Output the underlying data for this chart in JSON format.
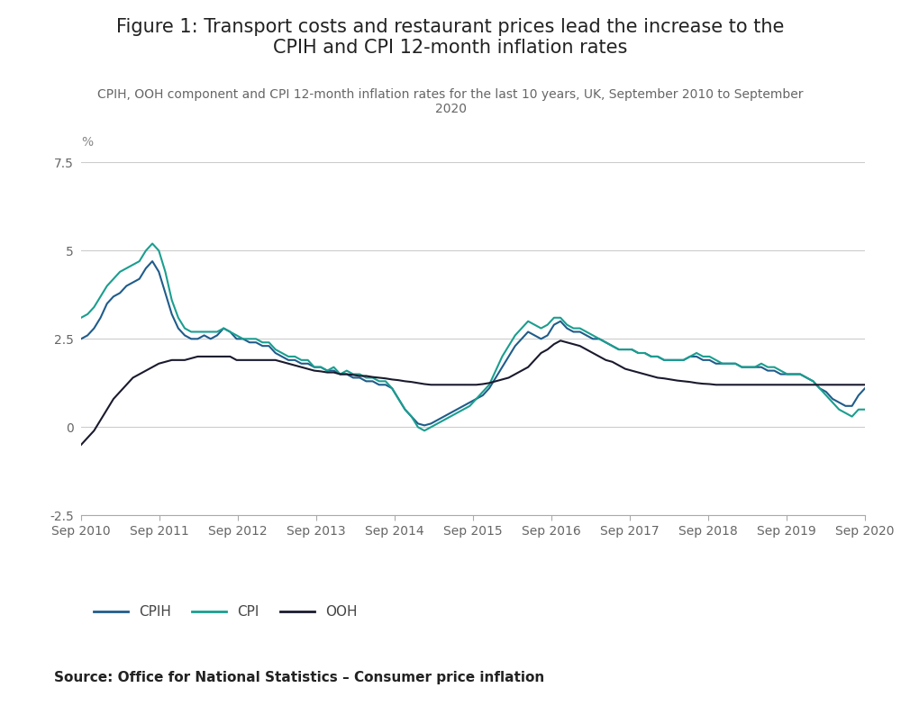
{
  "title": "Figure 1: Transport costs and restaurant prices lead the increase to the\nCPIH and CPI 12-month inflation rates",
  "subtitle": "CPIH, OOH component and CPI 12-month inflation rates for the last 10 years, UK, September 2010 to September\n2020",
  "source": "Source: Office for National Statistics – Consumer price inflation",
  "ylabel": "%",
  "ylim": [
    -2.5,
    7.5
  ],
  "yticks": [
    -2.5,
    0,
    2.5,
    5,
    7.5
  ],
  "xtick_labels": [
    "Sep 2010",
    "Sep 2011",
    "Sep 2012",
    "Sep 2013",
    "Sep 2014",
    "Sep 2015",
    "Sep 2016",
    "Sep 2017",
    "Sep 2018",
    "Sep 2019",
    "Sep 2020"
  ],
  "cpih_color": "#1f5c8b",
  "cpi_color": "#1a9e8f",
  "ooh_color": "#1a1a2e",
  "background_color": "#ffffff",
  "grid_color": "#cccccc",
  "title_fontsize": 15,
  "subtitle_fontsize": 10,
  "tick_fontsize": 10,
  "legend_fontsize": 11,
  "source_fontsize": 11,
  "cpih": [
    2.5,
    2.6,
    2.8,
    3.1,
    3.5,
    3.7,
    3.8,
    4.0,
    4.1,
    4.2,
    4.5,
    4.7,
    4.4,
    3.8,
    3.2,
    2.8,
    2.6,
    2.5,
    2.5,
    2.6,
    2.5,
    2.6,
    2.8,
    2.7,
    2.5,
    2.5,
    2.4,
    2.4,
    2.3,
    2.3,
    2.1,
    2.0,
    1.9,
    1.9,
    1.8,
    1.8,
    1.7,
    1.7,
    1.6,
    1.6,
    1.5,
    1.5,
    1.4,
    1.4,
    1.3,
    1.3,
    1.2,
    1.2,
    1.1,
    0.8,
    0.5,
    0.3,
    0.1,
    0.05,
    0.1,
    0.2,
    0.3,
    0.4,
    0.5,
    0.6,
    0.7,
    0.8,
    0.9,
    1.1,
    1.4,
    1.7,
    2.0,
    2.3,
    2.5,
    2.7,
    2.6,
    2.5,
    2.6,
    2.9,
    3.0,
    2.8,
    2.7,
    2.7,
    2.6,
    2.5,
    2.5,
    2.4,
    2.3,
    2.2,
    2.2,
    2.2,
    2.1,
    2.1,
    2.0,
    2.0,
    1.9,
    1.9,
    1.9,
    1.9,
    2.0,
    2.0,
    1.9,
    1.9,
    1.8,
    1.8,
    1.8,
    1.8,
    1.7,
    1.7,
    1.7,
    1.7,
    1.6,
    1.6,
    1.5,
    1.5,
    1.5,
    1.5,
    1.4,
    1.3,
    1.1,
    1.0,
    0.8,
    0.7,
    0.6,
    0.6,
    0.9,
    1.1
  ],
  "cpi": [
    3.1,
    3.2,
    3.4,
    3.7,
    4.0,
    4.2,
    4.4,
    4.5,
    4.6,
    4.7,
    5.0,
    5.2,
    5.0,
    4.4,
    3.6,
    3.1,
    2.8,
    2.7,
    2.7,
    2.7,
    2.7,
    2.7,
    2.8,
    2.7,
    2.6,
    2.5,
    2.5,
    2.5,
    2.4,
    2.4,
    2.2,
    2.1,
    2.0,
    2.0,
    1.9,
    1.9,
    1.7,
    1.7,
    1.6,
    1.7,
    1.5,
    1.6,
    1.5,
    1.5,
    1.4,
    1.4,
    1.3,
    1.3,
    1.1,
    0.8,
    0.5,
    0.3,
    0.0,
    -0.1,
    0.0,
    0.1,
    0.2,
    0.3,
    0.4,
    0.5,
    0.6,
    0.8,
    1.0,
    1.2,
    1.6,
    2.0,
    2.3,
    2.6,
    2.8,
    3.0,
    2.9,
    2.8,
    2.9,
    3.1,
    3.1,
    2.9,
    2.8,
    2.8,
    2.7,
    2.6,
    2.5,
    2.4,
    2.3,
    2.2,
    2.2,
    2.2,
    2.1,
    2.1,
    2.0,
    2.0,
    1.9,
    1.9,
    1.9,
    1.9,
    2.0,
    2.1,
    2.0,
    2.0,
    1.9,
    1.8,
    1.8,
    1.8,
    1.7,
    1.7,
    1.7,
    1.8,
    1.7,
    1.7,
    1.6,
    1.5,
    1.5,
    1.5,
    1.4,
    1.3,
    1.1,
    0.9,
    0.7,
    0.5,
    0.4,
    0.3,
    0.5,
    0.5
  ],
  "ooh": [
    -0.5,
    -0.3,
    -0.1,
    0.2,
    0.5,
    0.8,
    1.0,
    1.2,
    1.4,
    1.5,
    1.6,
    1.7,
    1.8,
    1.85,
    1.9,
    1.9,
    1.9,
    1.95,
    2.0,
    2.0,
    2.0,
    2.0,
    2.0,
    2.0,
    1.9,
    1.9,
    1.9,
    1.9,
    1.9,
    1.9,
    1.9,
    1.85,
    1.8,
    1.75,
    1.7,
    1.65,
    1.6,
    1.58,
    1.55,
    1.55,
    1.5,
    1.5,
    1.48,
    1.45,
    1.45,
    1.42,
    1.4,
    1.38,
    1.35,
    1.33,
    1.3,
    1.28,
    1.25,
    1.22,
    1.2,
    1.2,
    1.2,
    1.2,
    1.2,
    1.2,
    1.2,
    1.2,
    1.22,
    1.25,
    1.3,
    1.35,
    1.4,
    1.5,
    1.6,
    1.7,
    1.9,
    2.1,
    2.2,
    2.35,
    2.45,
    2.4,
    2.35,
    2.3,
    2.2,
    2.1,
    2.0,
    1.9,
    1.85,
    1.75,
    1.65,
    1.6,
    1.55,
    1.5,
    1.45,
    1.4,
    1.38,
    1.35,
    1.32,
    1.3,
    1.28,
    1.25,
    1.23,
    1.22,
    1.2,
    1.2,
    1.2,
    1.2,
    1.2,
    1.2,
    1.2,
    1.2,
    1.2,
    1.2,
    1.2,
    1.2,
    1.2,
    1.2,
    1.2,
    1.2,
    1.2,
    1.2,
    1.2,
    1.2,
    1.2,
    1.2,
    1.2,
    1.2
  ]
}
